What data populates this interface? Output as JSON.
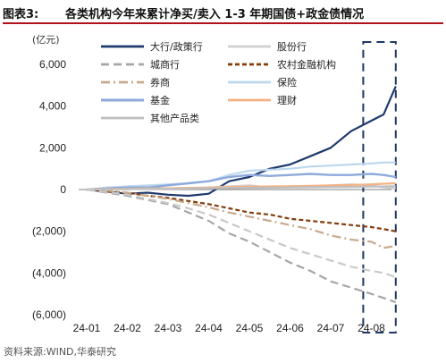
{
  "header": {
    "fig_label": "图表3:",
    "title": "各类机构今年来累计净买/卖入 1-3 年期国债+政金债情况"
  },
  "footer": {
    "source": "资料来源:WIND,华泰研究"
  },
  "chart_data": {
    "type": "line",
    "unit_label": "(亿元)",
    "ylim": [
      -6000,
      6000
    ],
    "yticks": [
      6000,
      4000,
      2000,
      0,
      -2000,
      -4000,
      -6000
    ],
    "ytick_labels": [
      "6,000",
      "4,000",
      "2,000",
      "0",
      "(2,000)",
      "(4,000)",
      "(6,000)"
    ],
    "xticks": [
      "24-01",
      "24-02",
      "24-03",
      "24-04",
      "24-05",
      "24-06",
      "24-07",
      "24-08"
    ],
    "x": [
      "24-01",
      "24-01.5",
      "24-02",
      "24-02.5",
      "24-03",
      "24-03.5",
      "24-04",
      "24-04.5",
      "24-05",
      "24-05.5",
      "24-06",
      "24-06.5",
      "24-07",
      "24-07.5",
      "24-08",
      "24-08.3",
      "24-08.6"
    ],
    "highlight_box": {
      "x_from": "24-07.8",
      "x_to": "24-08.6",
      "color": "#1f3864"
    },
    "grid": false,
    "legend": "top, two columns",
    "series": [
      {
        "name": "大行/政策行",
        "color": "#1f3a6e",
        "style": "solid",
        "width": 2.2,
        "values": [
          0,
          -100,
          -200,
          -150,
          -250,
          -300,
          -200,
          400,
          600,
          1000,
          1200,
          1600,
          2000,
          2800,
          3300,
          3600,
          4950
        ]
      },
      {
        "name": "股份行",
        "color": "#d0d0d0",
        "style": "solid",
        "width": 2.2,
        "values": [
          0,
          50,
          0,
          100,
          50,
          50,
          100,
          150,
          200,
          100,
          150,
          150,
          200,
          250,
          200,
          100,
          50
        ]
      },
      {
        "name": "城商行",
        "color": "#a6a6a6",
        "style": "dash",
        "width": 2.2,
        "values": [
          0,
          -150,
          -300,
          -500,
          -700,
          -1100,
          -1500,
          -2100,
          -2500,
          -3000,
          -3500,
          -3900,
          -4400,
          -4700,
          -5000,
          -5200,
          -5400
        ]
      },
      {
        "name": "农村金融机构",
        "color": "#843c0c",
        "style": "shortdash",
        "width": 2.2,
        "values": [
          0,
          -100,
          -150,
          -300,
          -400,
          -550,
          -700,
          -900,
          -1100,
          -1200,
          -1400,
          -1500,
          -1600,
          -1700,
          -1800,
          -1900,
          -2000
        ]
      },
      {
        "name": "券商",
        "color": "#c8a98e",
        "style": "dashdot",
        "width": 2.2,
        "values": [
          0,
          -50,
          -150,
          -300,
          -450,
          -650,
          -850,
          -1100,
          -1300,
          -1500,
          -1700,
          -1900,
          -2200,
          -2400,
          -2500,
          -2800,
          -2700
        ]
      },
      {
        "name": "保险",
        "color": "#bdd7ee",
        "style": "solid",
        "width": 2.2,
        "values": [
          0,
          100,
          150,
          200,
          250,
          300,
          400,
          700,
          900,
          950,
          1000,
          1100,
          1150,
          1200,
          1250,
          1300,
          1300
        ]
      },
      {
        "name": "基金",
        "color": "#8eaadb",
        "style": "solid",
        "width": 2.4,
        "values": [
          0,
          50,
          100,
          100,
          200,
          300,
          400,
          600,
          700,
          650,
          700,
          750,
          700,
          700,
          750,
          700,
          600
        ]
      },
      {
        "name": "理财",
        "color": "#f4b183",
        "style": "solid",
        "width": 2.2,
        "values": [
          0,
          20,
          40,
          50,
          60,
          80,
          100,
          120,
          140,
          150,
          160,
          180,
          200,
          220,
          250,
          280,
          300
        ]
      },
      {
        "name": "其他产品类",
        "color": "#bfbfbf",
        "style": "solid",
        "width": 2.2,
        "values": [
          0,
          10,
          20,
          30,
          40,
          50,
          60,
          70,
          80,
          90,
          100,
          110,
          120,
          130,
          140,
          150,
          160
        ]
      },
      {
        "name": "",
        "color": "#c9c9c9",
        "style": "dash",
        "width": 2.2,
        "values": [
          0,
          -120,
          -250,
          -450,
          -650,
          -900,
          -1200,
          -1600,
          -2000,
          -2400,
          -2800,
          -3100,
          -3400,
          -3700,
          -3900,
          -4000,
          -4200
        ]
      }
    ]
  }
}
